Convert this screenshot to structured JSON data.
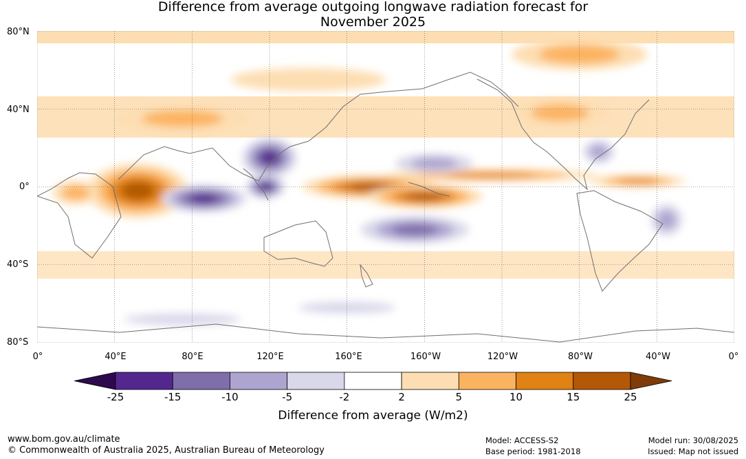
{
  "title_line1": "Difference from average outgoing longwave radiation forecast for",
  "title_line2": "November 2025",
  "lat_labels": [
    "80°N",
    "40°N",
    "0°",
    "40°S",
    "80°S"
  ],
  "lon_labels": [
    "0°",
    "40°E",
    "80°E",
    "120°E",
    "160°E",
    "160°W",
    "120°W",
    "80°W",
    "40°W",
    "0°"
  ],
  "legend": {
    "label": "Difference from average (W/m2)",
    "ticks": [
      "-25",
      "-15",
      "-10",
      "-5",
      "-2",
      "2",
      "5",
      "10",
      "15",
      "25"
    ],
    "colors": [
      "#2d0a4e",
      "#54278f",
      "#7f6eaa",
      "#ada4d0",
      "#d9d8ea",
      "#ffffff",
      "#fddeb2",
      "#fcb35f",
      "#e08214",
      "#b35806",
      "#7f3b08"
    ]
  },
  "footer": {
    "website": "www.bom.gov.au/climate",
    "copyright": "© Commonwealth of Australia 2025, Australian Bureau of Meteorology",
    "model": "Model: ACCESS-S2",
    "base_period": "Base period: 1981-2018",
    "model_run": "Model run: 30/08/2025",
    "issued": "Issued: Map not issued"
  },
  "map": {
    "projection": "equirectangular",
    "lon_range": [
      0,
      360
    ],
    "lat_range": [
      -80,
      80
    ],
    "anomalies": [
      {
        "lon": 52,
        "lat": -2,
        "rlon": 26,
        "rlat": 14,
        "value": 22
      },
      {
        "lon": 86,
        "lat": -6,
        "rlon": 22,
        "rlat": 7,
        "value": -23
      },
      {
        "lon": 120,
        "lat": 15,
        "rlon": 14,
        "rlat": 10,
        "value": -18
      },
      {
        "lon": 118,
        "lat": 0,
        "rlon": 10,
        "rlat": 6,
        "value": -16
      },
      {
        "lon": 172,
        "lat": 0,
        "rlon": 35,
        "rlat": 6,
        "value": 20
      },
      {
        "lon": 200,
        "lat": -5,
        "rlon": 30,
        "rlat": 6,
        "value": 15
      },
      {
        "lon": 235,
        "lat": 6,
        "rlon": 55,
        "rlat": 3,
        "value": 10
      },
      {
        "lon": 195,
        "lat": -22,
        "rlon": 28,
        "rlat": 7,
        "value": -11
      },
      {
        "lon": 205,
        "lat": 12,
        "rlon": 20,
        "rlat": 5,
        "value": -7
      },
      {
        "lon": 75,
        "lat": 35,
        "rlon": 35,
        "rlat": 7,
        "value": 9
      },
      {
        "lon": 270,
        "lat": 38,
        "rlon": 25,
        "rlat": 7,
        "value": 7
      },
      {
        "lon": 310,
        "lat": 3,
        "rlon": 25,
        "rlat": 3,
        "value": 10
      },
      {
        "lon": 140,
        "lat": 55,
        "rlon": 40,
        "rlat": 6,
        "value": 3
      },
      {
        "lon": 280,
        "lat": 68,
        "rlon": 35,
        "rlat": 8,
        "value": 6
      },
      {
        "lon": 20,
        "lat": -3,
        "rlon": 12,
        "rlat": 6,
        "value": 9
      },
      {
        "lon": 325,
        "lat": -17,
        "rlon": 8,
        "rlat": 8,
        "value": -7
      },
      {
        "lon": 75,
        "lat": -68,
        "rlon": 30,
        "rlat": 3,
        "value": -4
      },
      {
        "lon": 160,
        "lat": -62,
        "rlon": 25,
        "rlat": 3,
        "value": -3
      },
      {
        "lon": 290,
        "lat": 18,
        "rlon": 8,
        "rlat": 6,
        "value": -6
      }
    ]
  }
}
